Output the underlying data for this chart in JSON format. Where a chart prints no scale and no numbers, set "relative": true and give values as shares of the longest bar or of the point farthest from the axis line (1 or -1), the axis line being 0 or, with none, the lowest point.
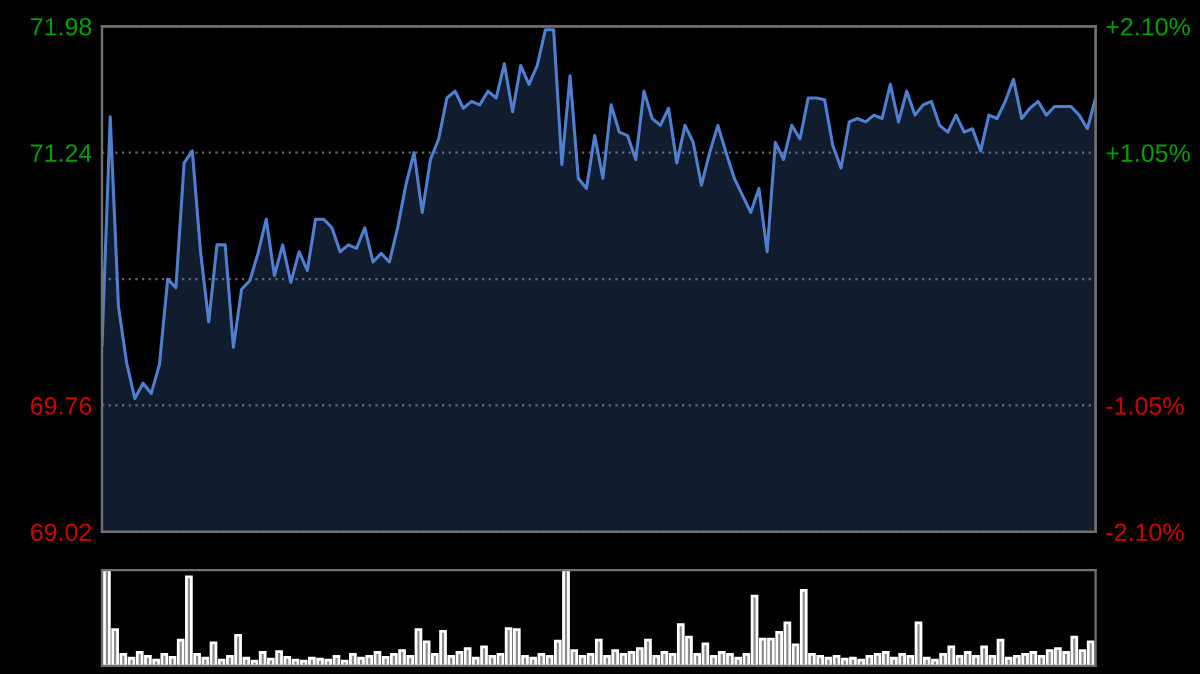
{
  "chart_data": [
    {
      "type": "area",
      "ylim": [
        69.02,
        71.98
      ],
      "yticks": [
        69.02,
        69.76,
        {
          "value": 70.5,
          "label": null
        },
        71.24,
        71.98
      ],
      "y2lim": [
        -2.1,
        2.1
      ],
      "y2ticks": [
        {
          "value": -2.1,
          "label": "-2.10%"
        },
        {
          "value": -1.05,
          "label": "-1.05%"
        },
        {
          "value": 1.05,
          "label": "+1.05%"
        },
        {
          "value": 2.1,
          "label": "+2.10%"
        }
      ],
      "grid": "y",
      "categories": [
        null,
        null,
        null,
        null,
        null,
        null,
        null,
        null,
        null,
        null,
        null,
        null,
        null,
        null,
        null,
        null,
        null,
        null,
        null,
        null,
        null,
        null,
        null,
        null,
        null,
        null,
        null,
        null,
        null,
        null,
        null,
        null,
        null,
        null,
        null,
        null,
        null,
        null,
        null,
        null,
        null,
        null,
        null,
        null,
        null,
        null,
        null,
        null,
        null,
        null,
        null,
        null,
        null,
        null,
        null,
        null,
        null,
        null,
        null,
        null,
        null,
        null,
        null,
        null,
        null,
        null,
        null,
        null,
        null,
        null,
        null,
        null,
        null,
        null,
        null,
        null,
        null,
        null,
        null,
        null,
        null,
        null,
        null,
        null,
        null,
        null,
        null,
        null,
        null,
        null,
        null,
        null,
        null,
        null,
        null,
        null,
        null,
        null,
        null,
        null,
        null,
        null,
        null,
        null,
        null,
        null,
        null,
        null,
        null,
        null,
        null,
        null,
        null,
        null,
        null,
        null,
        null,
        null,
        null,
        null,
        null,
        null
      ],
      "series": [
        {
          "color": "#4f7fd0",
          "values": [
            70.11,
            71.45,
            70.34,
            70.01,
            69.8,
            69.89,
            69.83,
            70.0,
            70.5,
            70.45,
            71.18,
            71.25,
            70.66,
            70.25,
            70.7,
            70.7,
            70.1,
            70.44,
            70.49,
            70.65,
            70.85,
            70.52,
            70.7,
            70.48,
            70.66,
            70.55,
            70.85,
            70.85,
            70.8,
            70.66,
            70.7,
            70.68,
            70.8,
            70.6,
            70.65,
            70.6,
            70.8,
            71.05,
            71.24,
            70.89,
            71.2,
            71.32,
            71.56,
            71.6,
            71.5,
            71.54,
            71.52,
            71.6,
            71.56,
            71.76,
            71.48,
            71.75,
            71.64,
            71.75,
            71.96,
            71.96,
            71.17,
            71.69,
            71.09,
            71.03,
            71.34,
            71.09,
            71.52,
            71.36,
            71.34,
            71.2,
            71.6,
            71.44,
            71.4,
            71.5,
            71.18,
            71.4,
            71.3,
            71.05,
            71.24,
            71.4,
            71.24,
            71.09,
            70.99,
            70.89,
            71.03,
            70.66,
            71.3,
            71.2,
            71.4,
            71.32,
            71.56,
            71.56,
            71.55,
            71.28,
            71.15,
            71.42,
            71.44,
            71.42,
            71.46,
            71.44,
            71.64,
            71.42,
            71.6,
            71.46,
            71.52,
            71.54,
            71.4,
            71.36,
            71.46,
            71.36,
            71.38,
            71.25,
            71.46,
            71.44,
            71.54,
            71.67,
            71.44,
            71.5,
            71.54,
            71.46,
            71.51,
            71.51,
            71.51,
            71.46,
            71.38,
            71.56
          ]
        }
      ]
    },
    {
      "type": "bar",
      "relative": true,
      "color": "#8a8a8a",
      "categories": [
        null,
        null,
        null,
        null,
        null,
        null,
        null,
        null,
        null,
        null,
        null,
        null,
        null,
        null,
        null,
        null,
        null,
        null,
        null,
        null,
        null,
        null,
        null,
        null,
        null,
        null,
        null,
        null,
        null,
        null,
        null,
        null,
        null,
        null,
        null,
        null,
        null,
        null,
        null,
        null,
        null,
        null,
        null,
        null,
        null,
        null,
        null,
        null,
        null,
        null,
        null,
        null,
        null,
        null,
        null,
        null,
        null,
        null,
        null,
        null,
        null,
        null,
        null,
        null,
        null,
        null,
        null,
        null,
        null,
        null,
        null,
        null,
        null,
        null,
        null,
        null,
        null,
        null,
        null,
        null,
        null,
        null,
        null,
        null,
        null,
        null,
        null,
        null,
        null,
        null,
        null,
        null,
        null,
        null,
        null,
        null,
        null,
        null,
        null,
        null,
        null,
        null,
        null,
        null,
        null,
        null,
        null,
        null,
        null,
        null,
        null,
        null,
        null,
        null,
        null,
        null,
        null,
        null,
        null,
        null,
        null
      ],
      "values": [
        1.0,
        0.38,
        0.12,
        0.08,
        0.14,
        0.1,
        0.06,
        0.12,
        0.09,
        0.27,
        0.93,
        0.12,
        0.08,
        0.24,
        0.06,
        0.1,
        0.32,
        0.08,
        0.05,
        0.14,
        0.07,
        0.15,
        0.09,
        0.06,
        0.05,
        0.08,
        0.07,
        0.06,
        0.1,
        0.05,
        0.12,
        0.08,
        0.1,
        0.14,
        0.09,
        0.12,
        0.16,
        0.1,
        0.38,
        0.25,
        0.12,
        0.36,
        0.1,
        0.14,
        0.18,
        0.08,
        0.2,
        0.1,
        0.12,
        0.39,
        0.38,
        0.1,
        0.08,
        0.12,
        0.1,
        0.26,
        1.0,
        0.16,
        0.1,
        0.12,
        0.27,
        0.1,
        0.16,
        0.12,
        0.14,
        0.18,
        0.27,
        0.1,
        0.14,
        0.12,
        0.43,
        0.3,
        0.12,
        0.23,
        0.1,
        0.14,
        0.12,
        0.08,
        0.12,
        0.73,
        0.28,
        0.28,
        0.35,
        0.45,
        0.22,
        0.79,
        0.12,
        0.1,
        0.08,
        0.1,
        0.07,
        0.08,
        0.06,
        0.1,
        0.12,
        0.14,
        0.08,
        0.12,
        0.1,
        0.45,
        0.08,
        0.06,
        0.12,
        0.2,
        0.1,
        0.14,
        0.1,
        0.2,
        0.1,
        0.27,
        0.08,
        0.1,
        0.12,
        0.14,
        0.1,
        0.16,
        0.18,
        0.14,
        0.3,
        0.16,
        0.25
      ]
    }
  ]
}
